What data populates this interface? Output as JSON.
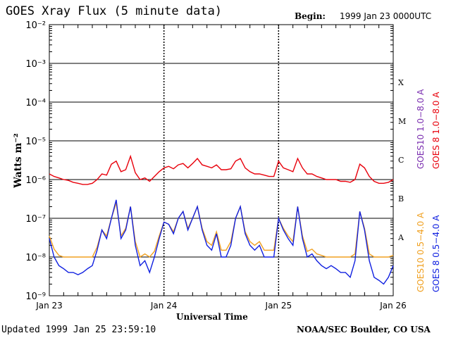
{
  "header": {
    "title": "GOES Xray Flux (5 minute data)",
    "begin_label": "Begin:",
    "begin_value": "1999 Jan 23 0000UTC"
  },
  "footer": {
    "updated": "Updated 1999 Jan 25 23:59:10",
    "credit": "NOAA/SEC Boulder, CO USA"
  },
  "colors": {
    "goes8_long": "#e8000b",
    "goes10_long": "#7b2fb0",
    "goes8_short": "#1020e0",
    "goes10_short": "#f0a020"
  },
  "chart_data": {
    "type": "line",
    "ylabel": "Watts m⁻²",
    "xlabel": "Universal Time",
    "y_scale": "log",
    "ylim": [
      1e-09,
      0.01
    ],
    "y_ticks": [
      "10⁻⁹",
      "10⁻⁸",
      "10⁻⁷",
      "10⁻⁶",
      "10⁻⁵",
      "10⁻⁴",
      "10⁻³",
      "10⁻²"
    ],
    "x_range_hours": [
      0,
      72
    ],
    "x_ticks": [
      {
        "label": "Jan 23",
        "hour": 0
      },
      {
        "label": "Jan 24",
        "hour": 24
      },
      {
        "label": "Jan 25",
        "hour": 48
      },
      {
        "label": "Jan 26",
        "hour": 72
      }
    ],
    "flare_classes": [
      {
        "label": "A",
        "value": 1e-08
      },
      {
        "label": "B",
        "value": 1e-07
      },
      {
        "label": "C",
        "value": 1e-06
      },
      {
        "label": "M",
        "value": 1e-05
      },
      {
        "label": "X",
        "value": 0.0001
      }
    ],
    "grid": true,
    "legend": [
      {
        "label": "GOES10 1.0−8.0 A",
        "color": "#7b2fb0"
      },
      {
        "label": "GOES 8 1.0−8.0 A",
        "color": "#e8000b"
      },
      {
        "label": "GOES10 0.5−4.0 A",
        "color": "#f0a020"
      },
      {
        "label": "GOES 8 0.5−4.0 A",
        "color": "#1020e0"
      }
    ],
    "series": [
      {
        "name": "GOES 8 1.0−8.0 A",
        "color": "#e8000b",
        "x": [
          0,
          1,
          2,
          3,
          4,
          5,
          6,
          7,
          8,
          9,
          10,
          11,
          12,
          13,
          14,
          15,
          16,
          17,
          18,
          19,
          20,
          21,
          22,
          23,
          24,
          25,
          26,
          27,
          28,
          29,
          30,
          31,
          32,
          33,
          34,
          35,
          36,
          37,
          38,
          39,
          40,
          41,
          42,
          43,
          44,
          45,
          46,
          47,
          48,
          49,
          50,
          51,
          52,
          53,
          54,
          55,
          56,
          57,
          58,
          59,
          60,
          61,
          62,
          63,
          64,
          65,
          66,
          67,
          68,
          69,
          70,
          71,
          72
        ],
        "values": [
          1.4e-06,
          1.2e-06,
          1.1e-06,
          1e-06,
          9.5e-07,
          8.5e-07,
          8e-07,
          7.5e-07,
          7.5e-07,
          8e-07,
          1e-06,
          1.4e-06,
          1.3e-06,
          2.5e-06,
          3e-06,
          1.6e-06,
          1.8e-06,
          4e-06,
          1.5e-06,
          1e-06,
          1.1e-06,
          9e-07,
          1.2e-06,
          1.6e-06,
          2e-06,
          2.2e-06,
          1.9e-06,
          2.4e-06,
          2.6e-06,
          2e-06,
          2.6e-06,
          3.5e-06,
          2.4e-06,
          2.2e-06,
          2e-06,
          2.4e-06,
          1.8e-06,
          1.8e-06,
          1.9e-06,
          3e-06,
          3.5e-06,
          2e-06,
          1.6e-06,
          1.4e-06,
          1.4e-06,
          1.3e-06,
          1.2e-06,
          1.2e-06,
          3e-06,
          2e-06,
          1.8e-06,
          1.6e-06,
          3.5e-06,
          2e-06,
          1.4e-06,
          1.4e-06,
          1.2e-06,
          1.1e-06,
          1e-06,
          1e-06,
          1e-06,
          9e-07,
          9e-07,
          8.5e-07,
          1e-06,
          2.5e-06,
          2e-06,
          1.2e-06,
          9e-07,
          8e-07,
          8e-07,
          8.5e-07,
          1e-06
        ]
      },
      {
        "name": "GOES 8 0.5−4.0 A",
        "color": "#1020e0",
        "x": [
          0,
          1,
          2,
          3,
          4,
          5,
          6,
          7,
          8,
          9,
          10,
          11,
          12,
          13,
          14,
          15,
          16,
          17,
          18,
          19,
          20,
          21,
          22,
          23,
          24,
          25,
          26,
          27,
          28,
          29,
          30,
          31,
          32,
          33,
          34,
          35,
          36,
          37,
          38,
          39,
          40,
          41,
          42,
          43,
          44,
          45,
          46,
          47,
          48,
          49,
          50,
          51,
          52,
          53,
          54,
          55,
          56,
          57,
          58,
          59,
          60,
          61,
          62,
          63,
          64,
          65,
          66,
          67,
          68,
          69,
          70,
          71,
          72
        ],
        "values": [
          3e-08,
          1e-08,
          6e-09,
          5e-09,
          4e-09,
          4e-09,
          3.5e-09,
          4e-09,
          5e-09,
          6e-09,
          1.5e-08,
          5e-08,
          3e-08,
          1e-07,
          3e-07,
          3e-08,
          5e-08,
          2e-07,
          2e-08,
          6e-09,
          8e-09,
          4e-09,
          1e-08,
          3e-08,
          8e-08,
          7e-08,
          4e-08,
          1e-07,
          1.5e-07,
          5e-08,
          1e-07,
          2e-07,
          5e-08,
          2e-08,
          1.5e-08,
          4e-08,
          1e-08,
          1e-08,
          2e-08,
          1e-07,
          2e-07,
          4e-08,
          2e-08,
          1.5e-08,
          2e-08,
          1e-08,
          1e-08,
          1e-08,
          1e-07,
          5e-08,
          3e-08,
          2e-08,
          2e-07,
          3e-08,
          1e-08,
          1.2e-08,
          8e-09,
          6e-09,
          5e-09,
          6e-09,
          5e-09,
          4e-09,
          4e-09,
          3e-09,
          8e-09,
          1.5e-07,
          5e-08,
          8e-09,
          3e-09,
          2.5e-09,
          2e-09,
          3e-09,
          6e-09
        ]
      },
      {
        "name": "GOES10 0.5−4.0 A",
        "color": "#f0a020",
        "x": [
          0,
          1,
          2,
          3,
          4,
          5,
          6,
          7,
          8,
          9,
          10,
          11,
          12,
          13,
          14,
          15,
          16,
          17,
          18,
          19,
          20,
          21,
          22,
          23,
          24,
          25,
          26,
          27,
          28,
          29,
          30,
          31,
          32,
          33,
          34,
          35,
          36,
          37,
          38,
          39,
          40,
          41,
          42,
          43,
          44,
          45,
          46,
          47,
          48,
          49,
          50,
          51,
          52,
          53,
          54,
          55,
          56,
          57,
          58,
          59,
          60,
          61,
          62,
          63,
          64,
          65,
          66,
          67,
          68,
          69,
          70,
          71,
          72
        ],
        "values": [
          3.5e-08,
          1.6e-08,
          1.1e-08,
          1e-08,
          1e-08,
          1e-08,
          1e-08,
          1e-08,
          1e-08,
          1e-08,
          1.8e-08,
          5e-08,
          3.5e-08,
          1e-07,
          2.5e-07,
          3.5e-08,
          5.5e-08,
          2e-07,
          2.5e-08,
          1e-08,
          1.2e-08,
          1e-08,
          1.4e-08,
          3.5e-08,
          8e-08,
          7e-08,
          4.5e-08,
          1e-07,
          1.5e-07,
          5.5e-08,
          1e-07,
          2e-07,
          5.5e-08,
          2.5e-08,
          2e-08,
          4.5e-08,
          1.5e-08,
          1.5e-08,
          2.5e-08,
          1e-07,
          2e-07,
          4.5e-08,
          2.5e-08,
          2e-08,
          2.5e-08,
          1.5e-08,
          1.5e-08,
          1.5e-08,
          1e-07,
          5.5e-08,
          3.5e-08,
          2.5e-08,
          2e-07,
          3.5e-08,
          1.4e-08,
          1.6e-08,
          1.2e-08,
          1.1e-08,
          1e-08,
          1e-08,
          1e-08,
          1e-08,
          1e-08,
          1e-08,
          1.2e-08,
          1.5e-07,
          5.5e-08,
          1.2e-08,
          1e-08,
          1e-08,
          1e-08,
          1e-08,
          1.1e-08
        ]
      }
    ]
  }
}
